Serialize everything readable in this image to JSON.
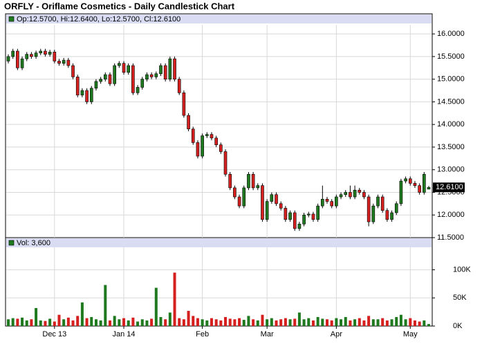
{
  "chart_data": {
    "type": "candlestick",
    "title": "ORFLY - Oriflame Cosmetics - Daily Candlestick Chart",
    "ohlc_label": "Op:12.5700, Hi:12.6400, Lo:12.5700, Cl:12.6100",
    "volume_label": "Vol: 3,600",
    "up_color": "#1f7a1f",
    "down_color": "#d62020",
    "grid": true,
    "ylim": [
      11.5,
      16.2
    ],
    "yticks": [
      {
        "value": 11.5,
        "label": "11.5000"
      },
      {
        "value": 12,
        "label": "12.0000"
      },
      {
        "value": 12.5,
        "label": "12.5000"
      },
      {
        "value": 13,
        "label": "13.0000"
      },
      {
        "value": 13.5,
        "label": "13.5000"
      },
      {
        "value": 14,
        "label": "14.0000"
      },
      {
        "value": 14.5,
        "label": "14.5000"
      },
      {
        "value": 15,
        "label": "15.0000"
      },
      {
        "value": 15.5,
        "label": "15.5000"
      },
      {
        "value": 16,
        "label": "16.0000"
      }
    ],
    "last_price": {
      "value": 12.61,
      "label": "12.6100"
    },
    "y2lim": [
      0,
      140000
    ],
    "y2ticks": [
      {
        "value": 0,
        "label": "0K"
      },
      {
        "value": 50000,
        "label": "50K"
      },
      {
        "value": 100000,
        "label": "100K"
      }
    ],
    "categories": [
      null,
      null,
      null,
      null,
      null,
      null,
      null,
      null,
      null,
      null,
      "Dec 13",
      null,
      null,
      null,
      null,
      null,
      null,
      null,
      null,
      null,
      null,
      null,
      null,
      null,
      null,
      "Jan 14",
      null,
      null,
      null,
      null,
      null,
      null,
      null,
      null,
      null,
      null,
      null,
      null,
      null,
      null,
      null,
      null,
      "Feb",
      null,
      null,
      null,
      null,
      null,
      null,
      null,
      null,
      null,
      null,
      null,
      null,
      null,
      "Mar",
      null,
      null,
      null,
      null,
      null,
      null,
      null,
      null,
      null,
      null,
      null,
      null,
      null,
      null,
      "Apr",
      null,
      null,
      null,
      null,
      null,
      null,
      null,
      null,
      null,
      null,
      null,
      null,
      null,
      null,
      null,
      "May",
      null,
      null,
      null,
      null
    ],
    "ohlc": [
      [
        15.4,
        15.55,
        15.35,
        15.5
      ],
      [
        15.5,
        15.67,
        15.45,
        15.62
      ],
      [
        15.62,
        15.67,
        15.2,
        15.25
      ],
      [
        15.25,
        15.5,
        15.2,
        15.45
      ],
      [
        15.45,
        15.6,
        15.4,
        15.55
      ],
      [
        15.55,
        15.6,
        15.45,
        15.5
      ],
      [
        15.5,
        15.63,
        15.45,
        15.58
      ],
      [
        15.58,
        15.67,
        15.53,
        15.62
      ],
      [
        15.62,
        15.67,
        15.5,
        15.55
      ],
      [
        15.55,
        15.65,
        15.5,
        15.6
      ],
      [
        15.6,
        15.65,
        15.35,
        15.4
      ],
      [
        15.4,
        15.45,
        15.3,
        15.35
      ],
      [
        15.35,
        15.47,
        15.3,
        15.42
      ],
      [
        15.42,
        15.47,
        15.25,
        15.3
      ],
      [
        15.3,
        15.35,
        15.0,
        15.05
      ],
      [
        15.05,
        15.1,
        14.6,
        14.65
      ],
      [
        14.65,
        14.8,
        14.6,
        14.75
      ],
      [
        14.75,
        14.8,
        14.45,
        14.5
      ],
      [
        14.5,
        14.85,
        14.45,
        14.8
      ],
      [
        14.8,
        15.0,
        14.75,
        14.95
      ],
      [
        14.95,
        15.05,
        14.9,
        15.0
      ],
      [
        15.0,
        15.15,
        14.95,
        15.1
      ],
      [
        15.1,
        15.15,
        14.85,
        14.9
      ],
      [
        14.9,
        15.35,
        14.85,
        15.3
      ],
      [
        15.3,
        15.4,
        15.25,
        15.35
      ],
      [
        15.35,
        15.4,
        15.1,
        15.15
      ],
      [
        15.15,
        15.35,
        15.1,
        15.3
      ],
      [
        15.3,
        15.35,
        14.65,
        14.7
      ],
      [
        14.7,
        14.87,
        14.65,
        14.82
      ],
      [
        14.82,
        15.05,
        14.77,
        15.0
      ],
      [
        15.0,
        15.15,
        14.95,
        15.1
      ],
      [
        15.1,
        15.15,
        15.0,
        15.05
      ],
      [
        15.05,
        15.17,
        15.0,
        15.12
      ],
      [
        15.12,
        15.35,
        15.07,
        15.3
      ],
      [
        15.3,
        15.35,
        14.95,
        15.0
      ],
      [
        15.0,
        15.5,
        14.95,
        15.45
      ],
      [
        15.45,
        15.5,
        14.95,
        15.0
      ],
      [
        15.0,
        15.05,
        14.65,
        14.7
      ],
      [
        14.7,
        14.75,
        14.15,
        14.2
      ],
      [
        14.2,
        14.25,
        13.85,
        13.9
      ],
      [
        13.9,
        13.95,
        13.55,
        13.6
      ],
      [
        13.6,
        13.65,
        13.25,
        13.3
      ],
      [
        13.3,
        13.8,
        13.25,
        13.75
      ],
      [
        13.75,
        13.83,
        13.7,
        13.78
      ],
      [
        13.78,
        13.83,
        13.65,
        13.7
      ],
      [
        13.7,
        13.75,
        13.5,
        13.55
      ],
      [
        13.55,
        13.6,
        13.35,
        13.4
      ],
      [
        13.4,
        13.45,
        12.85,
        12.9
      ],
      [
        12.9,
        12.95,
        12.55,
        12.6
      ],
      [
        12.6,
        12.65,
        12.35,
        12.4
      ],
      [
        12.4,
        12.45,
        12.15,
        12.2
      ],
      [
        12.2,
        12.65,
        12.15,
        12.6
      ],
      [
        12.6,
        12.95,
        12.55,
        12.9
      ],
      [
        12.9,
        12.95,
        12.55,
        12.6
      ],
      [
        12.6,
        12.7,
        12.55,
        12.65
      ],
      [
        12.65,
        12.7,
        11.85,
        11.9
      ],
      [
        11.9,
        12.35,
        11.85,
        12.3
      ],
      [
        12.3,
        12.5,
        12.25,
        12.45
      ],
      [
        12.45,
        12.5,
        12.2,
        12.25
      ],
      [
        12.25,
        12.3,
        12.1,
        12.15
      ],
      [
        12.15,
        12.2,
        11.85,
        11.9
      ],
      [
        11.9,
        12.1,
        11.85,
        12.05
      ],
      [
        12.05,
        12.1,
        11.65,
        11.7
      ],
      [
        11.7,
        11.85,
        11.65,
        11.8
      ],
      [
        11.8,
        12.05,
        11.75,
        12.0
      ],
      [
        12.0,
        12.07,
        11.95,
        12.02
      ],
      [
        12.02,
        12.07,
        11.85,
        11.9
      ],
      [
        11.9,
        12.25,
        11.85,
        12.2
      ],
      [
        12.2,
        12.65,
        12.15,
        12.35
      ],
      [
        12.35,
        12.4,
        12.25,
        12.3
      ],
      [
        12.3,
        12.35,
        12.15,
        12.2
      ],
      [
        12.2,
        12.45,
        12.15,
        12.4
      ],
      [
        12.4,
        12.5,
        12.35,
        12.45
      ],
      [
        12.45,
        12.55,
        12.4,
        12.5
      ],
      [
        12.5,
        12.65,
        12.35,
        12.4
      ],
      [
        12.4,
        12.65,
        12.35,
        12.55
      ],
      [
        12.55,
        12.6,
        12.45,
        12.5
      ],
      [
        12.5,
        12.55,
        12.35,
        12.4
      ],
      [
        12.4,
        12.45,
        11.75,
        11.85
      ],
      [
        11.85,
        12.25,
        11.8,
        12.2
      ],
      [
        12.2,
        12.45,
        12.15,
        12.4
      ],
      [
        12.4,
        12.45,
        12.05,
        12.1
      ],
      [
        12.1,
        12.15,
        11.85,
        11.9
      ],
      [
        11.9,
        12.1,
        11.85,
        12.05
      ],
      [
        12.05,
        12.3,
        12.0,
        12.25
      ],
      [
        12.25,
        12.8,
        12.2,
        12.75
      ],
      [
        12.75,
        12.85,
        12.7,
        12.8
      ],
      [
        12.8,
        12.85,
        12.65,
        12.7
      ],
      [
        12.7,
        12.75,
        12.6,
        12.65
      ],
      [
        12.65,
        12.7,
        12.45,
        12.5
      ],
      [
        12.5,
        12.95,
        12.45,
        12.9
      ],
      [
        12.57,
        12.64,
        12.57,
        12.61
      ]
    ],
    "volume": [
      12000,
      14000,
      13000,
      15000,
      10000,
      12000,
      32000,
      10000,
      9000,
      13000,
      8000,
      20000,
      12000,
      15000,
      10000,
      18000,
      42000,
      14000,
      16000,
      12000,
      10000,
      73000,
      10000,
      18000,
      12000,
      14000,
      10000,
      15000,
      8000,
      12000,
      10000,
      13000,
      68000,
      16000,
      12000,
      24000,
      95000,
      14000,
      12000,
      27000,
      18000,
      14000,
      12000,
      10000,
      14000,
      12000,
      10000,
      16000,
      13000,
      12000,
      14000,
      11000,
      18000,
      12000,
      10000,
      20000,
      12000,
      14000,
      10000,
      12000,
      14000,
      12000,
      13000,
      24000,
      12000,
      14000,
      10000,
      16000,
      13000,
      12000,
      10000,
      14000,
      12000,
      16000,
      10000,
      12000,
      14000,
      10000,
      18000,
      12000,
      12000,
      14000,
      10000,
      12000,
      16000,
      20000,
      12000,
      14000,
      10000,
      8000,
      10000,
      3600
    ]
  }
}
